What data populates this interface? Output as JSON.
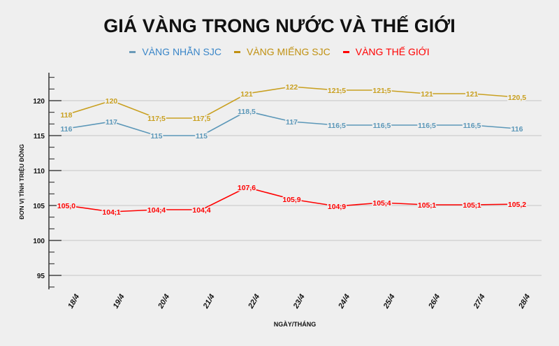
{
  "chart_data": {
    "type": "line",
    "title": "GIÁ VÀNG TRONG NƯỚC VÀ THẾ GIỚI",
    "xlabel": "NGÀY/THÁNG",
    "ylabel": "ĐƠN VỊ TÍNH TRIỆU ĐỒNG",
    "categories": [
      "18/4",
      "19/4",
      "20/4",
      "21/4",
      "22/4",
      "23/4",
      "24/4",
      "25/4",
      "26/4",
      "27/4",
      "28/4"
    ],
    "ylim": [
      93,
      124
    ],
    "yticks": [
      95,
      100,
      105,
      110,
      115,
      120
    ],
    "grid": true,
    "legend": "top",
    "series": [
      {
        "name": "VÀNG NHẪN SJC",
        "color": "#5b97b8",
        "legend_color": "#3a86c8",
        "values": [
          116,
          117,
          115,
          115,
          118.5,
          117,
          116.5,
          116.5,
          116.5,
          116.5,
          116
        ],
        "labels": [
          "116",
          "117",
          "115",
          "115",
          "118,5",
          "117",
          "116,5",
          "116,5",
          "116,5",
          "116,5",
          "116"
        ]
      },
      {
        "name": "VÀNG MIẾNG SJC",
        "color": "#c9a020",
        "legend_color": "#c09010",
        "values": [
          118,
          120,
          117.5,
          117.5,
          121,
          122,
          121.5,
          121.5,
          121,
          121,
          120.5
        ],
        "labels": [
          "118",
          "120",
          "117,5",
          "117,5",
          "121",
          "122",
          "121,5",
          "121,5",
          "121",
          "121",
          "120,5"
        ]
      },
      {
        "name": "VÀNG THẾ GIỚI",
        "color": "#ff0000",
        "legend_color": "#ff0000",
        "values": [
          105.0,
          104.1,
          104.4,
          104.4,
          107.6,
          105.9,
          104.9,
          105.4,
          105.1,
          105.1,
          105.2
        ],
        "labels": [
          "105,0",
          "104,1",
          "104,4",
          "104,4",
          "107,6",
          "105,9",
          "104,9",
          "105,4",
          "105,1",
          "105,1",
          "105,2"
        ]
      }
    ]
  }
}
